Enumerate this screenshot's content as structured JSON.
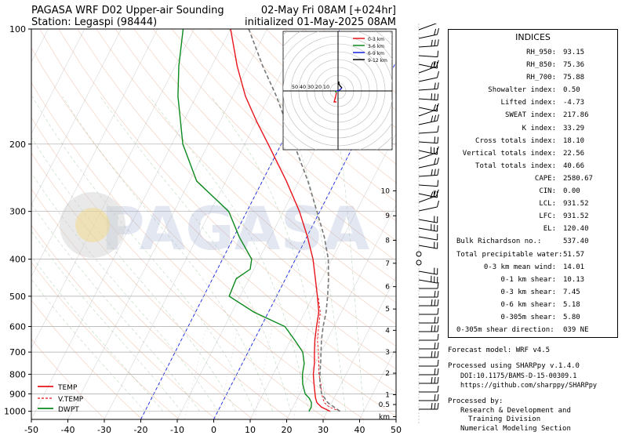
{
  "header": {
    "title_left_1": "PAGASA WRF D02 Upper-air Sounding",
    "title_left_2": "Station: Legaspi (98444)",
    "title_right_1": "02-May Fri 08AM [+024hr]",
    "title_right_2": "initialized 01-May-2025 08AM"
  },
  "watermark": "PAGASA",
  "chart_data": {
    "type": "line",
    "xlim": [
      -50,
      50
    ],
    "ylim_hpa": [
      1050,
      100
    ],
    "y_scale": "log",
    "x_ticks": [
      "-50",
      "-40",
      "-30",
      "-20",
      "-10",
      "0",
      "10",
      "20",
      "30",
      "40",
      "50"
    ],
    "y_ticks": [
      "100",
      "200",
      "300",
      "400",
      "500",
      "600",
      "700",
      "800",
      "900",
      "1000"
    ],
    "height_km_ticks": [
      "10",
      "9",
      "8",
      "7",
      "6",
      "5",
      "4",
      "3",
      "2",
      "1",
      "0.5",
      "km"
    ],
    "legend": {
      "placement": "lower-left",
      "entries": [
        "TEMP",
        "V.TEMP",
        "DWPT"
      ]
    },
    "colors": {
      "temp": "#e8141c",
      "vtemp": "#e8141c",
      "dwpt": "#0c8a1e",
      "parcel": "#777777"
    },
    "series": [
      {
        "name": "TEMP",
        "points": [
          [
            1000,
            30.8
          ],
          [
            975,
            27.8
          ],
          [
            950,
            26.0
          ],
          [
            925,
            25.0
          ],
          [
            900,
            24.2
          ],
          [
            850,
            22.6
          ],
          [
            800,
            21.0
          ],
          [
            750,
            19.8
          ],
          [
            700,
            18.2
          ],
          [
            650,
            16.6
          ],
          [
            600,
            15.2
          ],
          [
            550,
            13.8
          ],
          [
            500,
            11.2
          ],
          [
            450,
            8.2
          ],
          [
            400,
            4.8
          ],
          [
            350,
            0.2
          ],
          [
            300,
            -5.6
          ],
          [
            250,
            -13.4
          ],
          [
            200,
            -23.6
          ],
          [
            175,
            -29.8
          ],
          [
            150,
            -36.5
          ],
          [
            125,
            -43.0
          ],
          [
            100,
            -50.0
          ]
        ]
      },
      {
        "name": "V.TEMP",
        "points": [
          [
            1000,
            33.5
          ],
          [
            975,
            30.0
          ],
          [
            950,
            28.0
          ],
          [
            925,
            27.0
          ],
          [
            900,
            26.0
          ],
          [
            850,
            24.5
          ],
          [
            800,
            22.5
          ],
          [
            750,
            21.0
          ],
          [
            700,
            19.3
          ],
          [
            650,
            17.3
          ],
          [
            600,
            15.8
          ],
          [
            550,
            14.2
          ],
          [
            500,
            11.4
          ]
        ]
      },
      {
        "name": "DWPT",
        "points": [
          [
            1000,
            25.0
          ],
          [
            975,
            25.0
          ],
          [
            950,
            24.5
          ],
          [
            925,
            23.3
          ],
          [
            900,
            21.5
          ],
          [
            850,
            19.5
          ],
          [
            800,
            18.0
          ],
          [
            750,
            17.0
          ],
          [
            700,
            15.0
          ],
          [
            650,
            11.0
          ],
          [
            600,
            6.5
          ],
          [
            550,
            -4.0
          ],
          [
            500,
            -13.0
          ],
          [
            450,
            -13.5
          ],
          [
            425,
            -11.0
          ],
          [
            400,
            -12.0
          ],
          [
            350,
            -18.5
          ],
          [
            300,
            -25.0
          ],
          [
            250,
            -38.0
          ],
          [
            200,
            -47.0
          ],
          [
            150,
            -55.0
          ],
          [
            125,
            -59.0
          ],
          [
            100,
            -63.0
          ]
        ]
      },
      {
        "name": "",
        "points": [
          [
            1000,
            33.5
          ],
          [
            950,
            29.0
          ],
          [
            900,
            26.0
          ],
          [
            850,
            24.2
          ],
          [
            800,
            22.8
          ],
          [
            750,
            21.5
          ],
          [
            700,
            20.0
          ],
          [
            650,
            18.4
          ],
          [
            600,
            17.0
          ],
          [
            550,
            15.8
          ],
          [
            500,
            14.0
          ],
          [
            450,
            11.8
          ],
          [
            400,
            9.0
          ],
          [
            350,
            4.8
          ],
          [
            300,
            -0.8
          ],
          [
            250,
            -7.5
          ],
          [
            200,
            -16.5
          ],
          [
            150,
            -28.0
          ],
          [
            125,
            -36.0
          ],
          [
            100,
            -45.0
          ]
        ]
      }
    ],
    "hodograph": {
      "ring_labels": [
        "50",
        "40",
        "30",
        "20",
        "10"
      ],
      "legend": [
        "0-3 km",
        "3-6 km",
        "6-9 km",
        "9-12 km"
      ],
      "colors": [
        "#e8141c",
        "#0c8a1e",
        "#1420e0",
        "#000000"
      ],
      "segments": [
        [
          [
            -2,
            -14
          ],
          [
            -5,
            -14
          ],
          [
            -3,
            -7
          ],
          [
            -2,
            -2
          ]
        ],
        [
          [
            -2,
            -2
          ],
          [
            -3,
            -1
          ],
          [
            -2,
            0
          ]
        ],
        [
          [
            -2,
            0
          ],
          [
            2,
            1
          ],
          [
            5,
            4
          ]
        ],
        [
          [
            5,
            4
          ],
          [
            3,
            6
          ],
          [
            1,
            9
          ],
          [
            1,
            12
          ]
        ]
      ]
    }
  },
  "indices": {
    "title": "INDICES",
    "rows": [
      {
        "label": "RH_950:",
        "value": "93.15"
      },
      {
        "label": "RH_850:",
        "value": "75.36"
      },
      {
        "label": "RH_700:",
        "value": "75.88"
      },
      {
        "label": "Showalter index:",
        "value": "0.50"
      },
      {
        "label": "Lifted index:",
        "value": "-4.73"
      },
      {
        "label": "SWEAT index:",
        "value": "217.86"
      },
      {
        "label": "K index:",
        "value": "33.29"
      },
      {
        "label": "Cross totals index:",
        "value": "18.10"
      },
      {
        "label": "Vertical totals index:",
        "value": "22.56"
      },
      {
        "label": "Total totals index:",
        "value": "40.66"
      },
      {
        "label": "CAPE:",
        "value": "2580.67"
      },
      {
        "label": "CIN:",
        "value": "0.00"
      },
      {
        "label": "LCL:",
        "value": "931.52"
      },
      {
        "label": "LFC:",
        "value": "931.52"
      },
      {
        "label": "EL:",
        "value": "120.40"
      },
      {
        "label": "Bulk Richardson no.:",
        "value": "537.40"
      },
      {
        "label": "Total precipitable water:",
        "value": "51.57"
      },
      {
        "label": "0-3 km mean wind:",
        "value": "14.01"
      },
      {
        "label": "0-1 km shear:",
        "value": "10.13"
      },
      {
        "label": "0-3 km shear:",
        "value": "7.45"
      },
      {
        "label": "0-6 km shear:",
        "value": "5.18"
      },
      {
        "label": "0-305m shear:",
        "value": "5.80"
      },
      {
        "label": "0-305m shear direction:",
        "value": "039 NE"
      }
    ]
  },
  "footer": {
    "forecast_model": "Forecast model: WRF v4.5",
    "processed_using": "Processed using SHARPpy v.1.4.0",
    "doi": "DOI:10.1175/BAMS-D-15-00309.1",
    "github": "https://github.com/sharppy/SHARPpy",
    "processed_by": "Processed by:",
    "org_1": "Research & Development and",
    "org_2": "Training Division",
    "org_3": "Numerical Modeling Section"
  }
}
